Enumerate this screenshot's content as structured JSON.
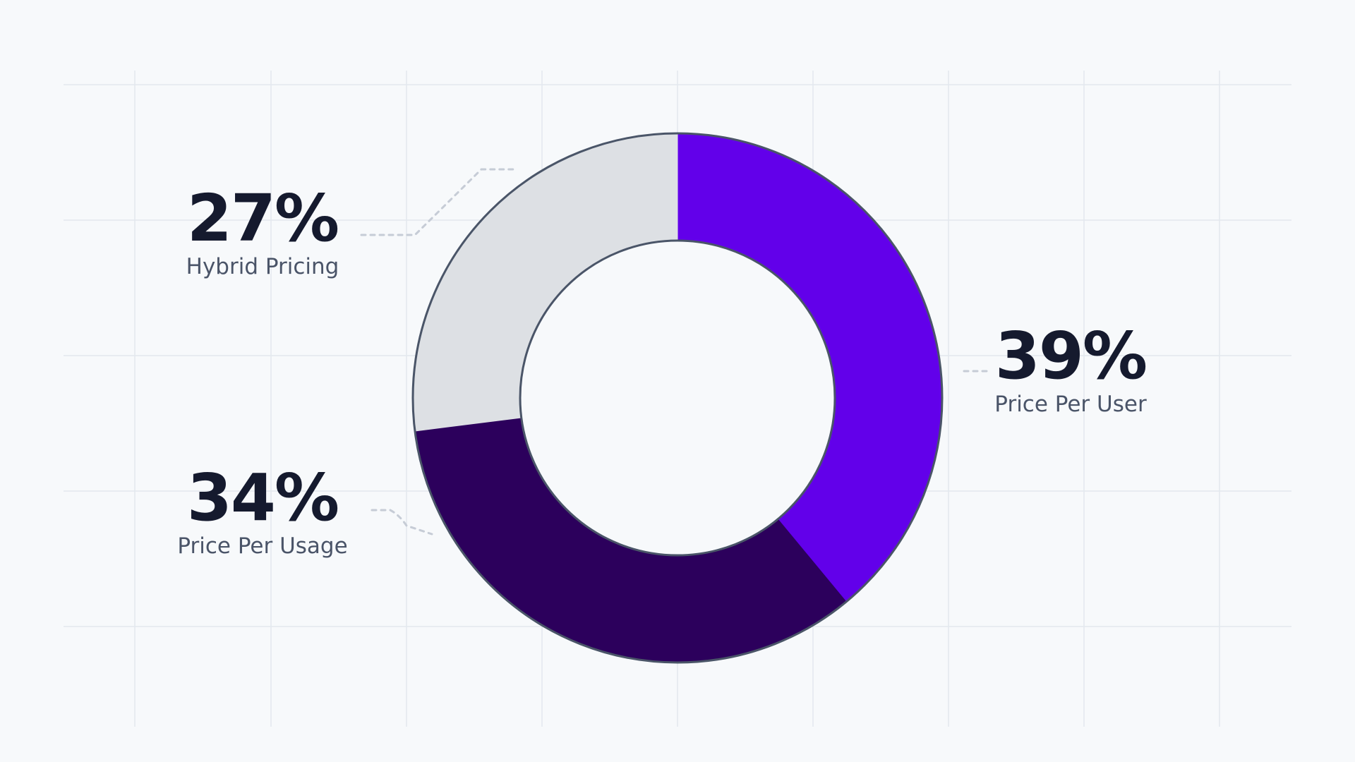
{
  "chart_data": {
    "type": "pie",
    "donut": true,
    "title": "",
    "slices": [
      {
        "label": "Price Per User",
        "value": 39,
        "display": "39%",
        "color": "#6200ea"
      },
      {
        "label": "Price Per Usage",
        "value": 34,
        "display": "34%",
        "color": "#2c005c"
      },
      {
        "label": "Hybrid Pricing",
        "value": 27,
        "display": "27%",
        "color": "#dde0e4"
      }
    ],
    "start_angle_deg": 0,
    "direction": "clockwise",
    "legend": "callouts",
    "grid": true
  },
  "colors": {
    "background": "#f7f9fb",
    "gridline": "#e3e8ee",
    "outline": "#4a5568",
    "connector": "#c6ccd6",
    "value_text": "#151a2e",
    "label_text": "#4a5468"
  }
}
